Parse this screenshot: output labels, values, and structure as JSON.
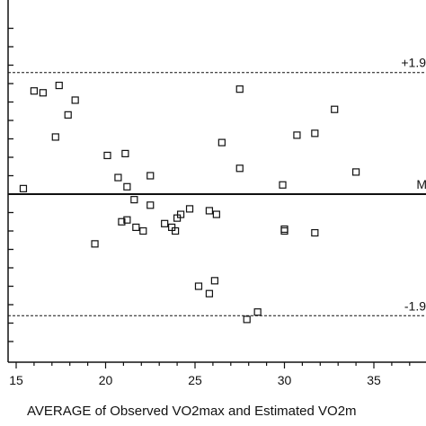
{
  "chart_data": {
    "type": "scatter",
    "title": "",
    "xlabel": "AVERAGE of Observed VO2max and Estimated VO2m",
    "ylabel": "",
    "xlim": [
      14.5,
      38.5
    ],
    "ylim": [
      -8.4,
      10
    ],
    "x_ticks": [
      15,
      20,
      25,
      30,
      35
    ],
    "y_minor_ticks": [
      9.0,
      8.0,
      7.0,
      6.0,
      5.0,
      4.0,
      3.0,
      2.0,
      1.0,
      0.0,
      -1.0,
      -2.0,
      -3.0,
      -4.0,
      -5.0,
      -6.0,
      -7.0,
      -8.0
    ],
    "reference_lines": [
      {
        "name": "upper",
        "label": "+1.9",
        "y": 6.6,
        "style": "dashed"
      },
      {
        "name": "mean",
        "label": "M",
        "y": 0.0,
        "style": "solid"
      },
      {
        "name": "lower",
        "label": "-1.9",
        "y": -6.6,
        "style": "dashed"
      }
    ],
    "points": [
      {
        "x": 15.4,
        "y": 0.3
      },
      {
        "x": 16.0,
        "y": 5.6
      },
      {
        "x": 16.5,
        "y": 5.5
      },
      {
        "x": 17.2,
        "y": 3.1
      },
      {
        "x": 17.4,
        "y": 5.9
      },
      {
        "x": 17.9,
        "y": 4.3
      },
      {
        "x": 18.3,
        "y": 5.1
      },
      {
        "x": 19.4,
        "y": -2.7
      },
      {
        "x": 20.1,
        "y": 2.1
      },
      {
        "x": 20.7,
        "y": 0.9
      },
      {
        "x": 20.9,
        "y": -1.5
      },
      {
        "x": 21.1,
        "y": 2.2
      },
      {
        "x": 21.2,
        "y": 0.4
      },
      {
        "x": 21.2,
        "y": -1.4
      },
      {
        "x": 21.6,
        "y": -0.3
      },
      {
        "x": 21.7,
        "y": -1.8
      },
      {
        "x": 22.1,
        "y": -2.0
      },
      {
        "x": 22.5,
        "y": -0.6
      },
      {
        "x": 22.5,
        "y": 1.0
      },
      {
        "x": 23.3,
        "y": -1.6
      },
      {
        "x": 23.7,
        "y": -1.8
      },
      {
        "x": 23.9,
        "y": -2.0
      },
      {
        "x": 24.0,
        "y": -1.3
      },
      {
        "x": 24.2,
        "y": -1.1
      },
      {
        "x": 24.7,
        "y": -0.8
      },
      {
        "x": 25.2,
        "y": -5.0
      },
      {
        "x": 25.8,
        "y": -5.4
      },
      {
        "x": 25.8,
        "y": -0.9
      },
      {
        "x": 26.1,
        "y": -4.7
      },
      {
        "x": 26.2,
        "y": -1.1
      },
      {
        "x": 26.5,
        "y": 2.8
      },
      {
        "x": 27.5,
        "y": 5.7
      },
      {
        "x": 27.5,
        "y": 1.4
      },
      {
        "x": 27.9,
        "y": -6.8
      },
      {
        "x": 28.5,
        "y": -6.4
      },
      {
        "x": 29.9,
        "y": 0.5
      },
      {
        "x": 30.0,
        "y": -1.9
      },
      {
        "x": 30.0,
        "y": -2.0
      },
      {
        "x": 30.7,
        "y": 3.2
      },
      {
        "x": 31.7,
        "y": 3.3
      },
      {
        "x": 31.7,
        "y": -2.1
      },
      {
        "x": 32.8,
        "y": 4.6
      },
      {
        "x": 34.0,
        "y": 1.2
      }
    ]
  }
}
